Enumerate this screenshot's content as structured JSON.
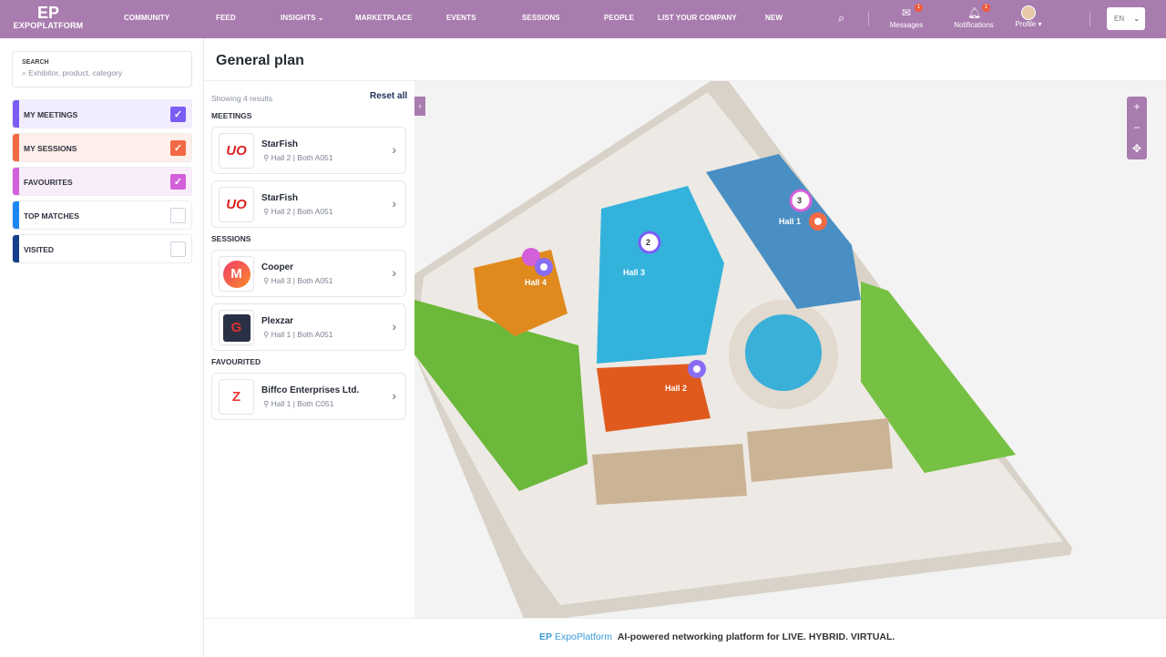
{
  "header": {
    "logo_mark": "EP",
    "logo_text": "EXPOPLATFORM",
    "nav": [
      "COMMUNITY",
      "FEED",
      "INSIGHTS",
      "MARKETPLACE",
      "EVENTS",
      "SESSIONS",
      "PEOPLE",
      "LIST YOUR COMPANY",
      "NEW"
    ],
    "messages": "Messages",
    "messages_badge": "1",
    "notifications": "Notifications",
    "notifications_badge": "1",
    "profile": "Profile",
    "lang": "EN",
    "color": "#a87cae"
  },
  "search": {
    "label": "SEARCH",
    "placeholder": "Exhibitor, product, category"
  },
  "filters": [
    {
      "label": "MY MEETINGS",
      "checked": true,
      "color": "#7b5cf5"
    },
    {
      "label": "MY SESSIONS",
      "checked": true,
      "color": "#f26a43"
    },
    {
      "label": "FAVOURITES",
      "checked": true,
      "color": "#d35fd9"
    },
    {
      "label": "TOP MATCHES",
      "checked": false,
      "color": "#1c86f2"
    },
    {
      "label": "VISITED",
      "checked": false,
      "color": "#173e8a"
    }
  ],
  "page_title": "General plan",
  "results": {
    "showing": "Showing 4 results",
    "reset": "Reset all",
    "sections": [
      {
        "title": "MEETINGS",
        "items": [
          {
            "name": "StarFish",
            "loc": "Hall 2 | Both A051"
          },
          {
            "name": "StarFish",
            "loc": "Hall 2 | Both A051"
          }
        ]
      },
      {
        "title": "SESSIONS",
        "items": [
          {
            "name": "Cooper",
            "loc": "Hall 3 | Both A051"
          },
          {
            "name": "Plexzar",
            "loc": "Hall 1 | Both A051"
          }
        ]
      },
      {
        "title": "FAVOURITED",
        "items": [
          {
            "name": "Biffco Enterprises Ltd.",
            "loc": "Hall 1 | Both C051"
          }
        ]
      }
    ]
  },
  "map": {
    "halls": [
      "Hall 1",
      "Hall 2",
      "Hall 3",
      "Hall 4"
    ],
    "pins": [
      "3",
      "2"
    ],
    "zoom_in": "+",
    "zoom_out": "−"
  },
  "footer": {
    "brand": "ExpoPlatform",
    "tagline": "AI-powered networking platform for LIVE. HYBRID. VIRTUAL."
  }
}
